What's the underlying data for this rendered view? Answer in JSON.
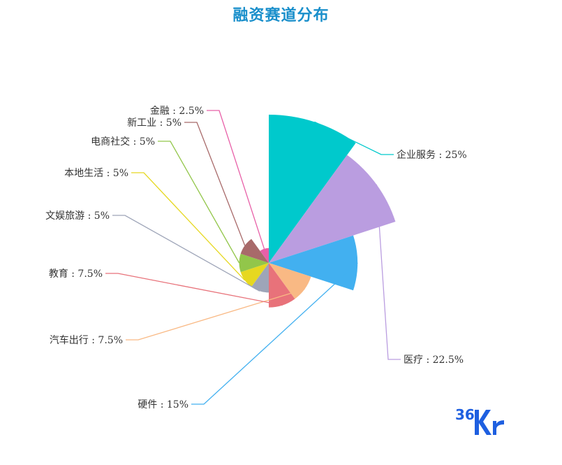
{
  "chart_data": {
    "type": "pie",
    "title": "融资赛道分布",
    "subtype": "rose (radius proportional to value)",
    "slices": [
      {
        "label": "企业服务",
        "value": 25,
        "color": "#00C9CC"
      },
      {
        "label": "医疗",
        "value": 22.5,
        "color": "#BA9DE0"
      },
      {
        "label": "硬件",
        "value": 15,
        "color": "#42B0F0"
      },
      {
        "label": "汽车出行",
        "value": 7.5,
        "color": "#F9B984"
      },
      {
        "label": "教育",
        "value": 7.5,
        "color": "#E8727A"
      },
      {
        "label": "文娱旅游",
        "value": 5,
        "color": "#9EA5B8"
      },
      {
        "label": "本地生活",
        "value": 5,
        "color": "#E6D820"
      },
      {
        "label": "电商社交",
        "value": 5,
        "color": "#92C64A"
      },
      {
        "label": "新工业",
        "value": 5,
        "color": "#A86A6A"
      },
      {
        "label": "金融",
        "value": 2.5,
        "color": "#E860A8"
      }
    ],
    "label_format": "{name} : {value}%",
    "title_color": "#1A8FCB"
  },
  "watermark": {
    "text": "36Kr",
    "color": "#1E5FE0"
  }
}
